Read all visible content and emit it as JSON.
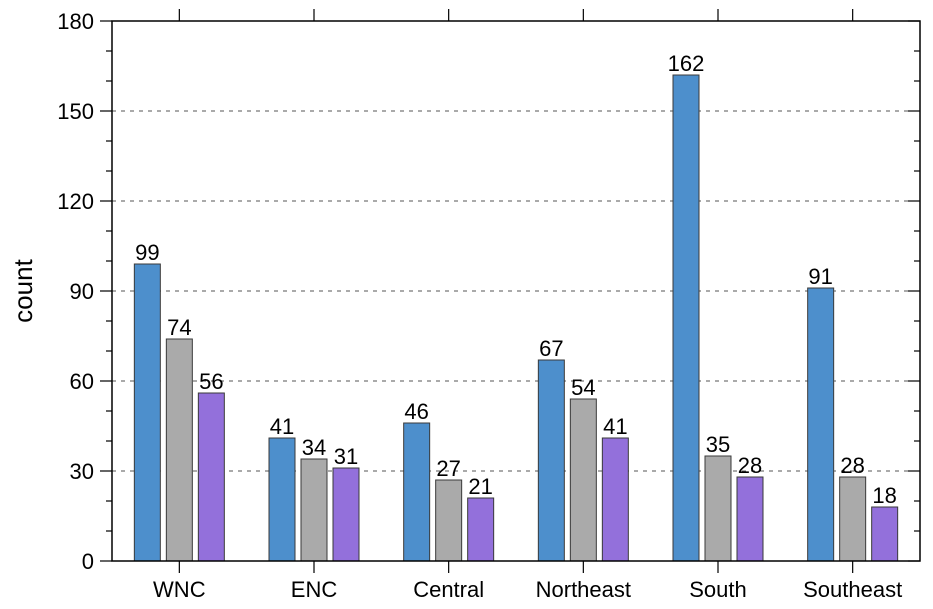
{
  "chart_data": {
    "type": "bar",
    "categories": [
      "WNC",
      "ENC",
      "Central",
      "Northeast",
      "South",
      "Southeast"
    ],
    "series": [
      {
        "values": [
          99,
          41,
          46,
          67,
          162,
          91
        ],
        "color": "#4d8fcc"
      },
      {
        "values": [
          74,
          34,
          27,
          54,
          35,
          28
        ],
        "color": "#aaaaaa"
      },
      {
        "values": [
          56,
          31,
          21,
          41,
          28,
          18
        ],
        "color": "#9370db"
      }
    ],
    "xlabel": "",
    "ylabel": "count",
    "ylim": [
      0,
      180
    ],
    "yticks": [
      0,
      30,
      60,
      90,
      120,
      150,
      180
    ],
    "grid": "horizontal dashed",
    "data_labels": true
  }
}
